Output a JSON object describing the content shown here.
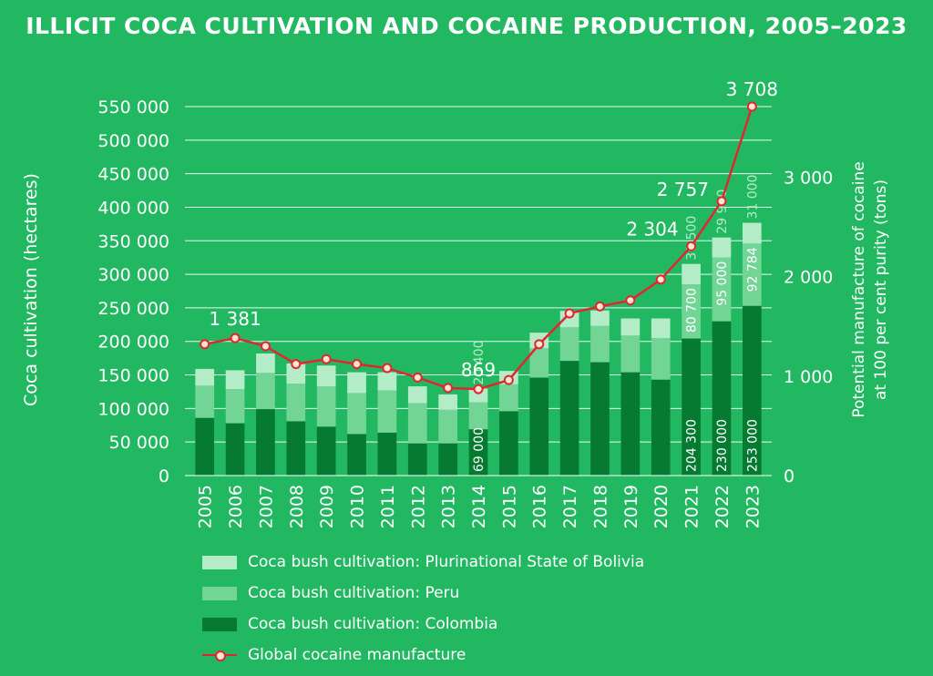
{
  "title": "ILLICIT COCA CULTIVATION AND COCAINE PRODUCTION, 2005–2023",
  "colors": {
    "background": "#22b862",
    "bolivia": "#b3ecc6",
    "peru": "#72d596",
    "colombia": "#077a32",
    "manufacture_line": "#e0262f",
    "manufacture_marker_fill": "#fde6d2"
  },
  "chart_data": {
    "type": "bar",
    "stacked": true,
    "categories": [
      "2005",
      "2006",
      "2007",
      "2008",
      "2009",
      "2010",
      "2011",
      "2012",
      "2013",
      "2014",
      "2015",
      "2016",
      "2017",
      "2018",
      "2019",
      "2020",
      "2021",
      "2022",
      "2023"
    ],
    "series": [
      {
        "name": "Coca bush cultivation: Colombia",
        "axis": "left",
        "values": [
          86000,
          78000,
          99000,
          81000,
          73000,
          62000,
          64000,
          48000,
          48000,
          69000,
          96000,
          146000,
          171000,
          169000,
          154000,
          143000,
          204300,
          230000,
          253000
        ]
      },
      {
        "name": "Coca bush cultivation: Peru",
        "axis": "left",
        "values": [
          48000,
          51000,
          54000,
          56000,
          60000,
          61000,
          63000,
          60000,
          50000,
          40300,
          40000,
          44000,
          50000,
          54000,
          54700,
          61800,
          80700,
          95000,
          92784
        ]
      },
      {
        "name": "Coca bush cultivation: Plurinational State of Bolivia",
        "axis": "left",
        "values": [
          25000,
          28000,
          29000,
          30000,
          31000,
          31000,
          27000,
          25000,
          23000,
          20400,
          20000,
          23000,
          24500,
          23100,
          25500,
          29400,
          30500,
          29900,
          31000
        ]
      },
      {
        "name": "Global cocaine manufacture",
        "axis": "right",
        "type": "line",
        "values": [
          1320,
          1381,
          1300,
          1120,
          1170,
          1120,
          1080,
          985,
          880,
          869,
          960,
          1320,
          1630,
          1700,
          1760,
          1970,
          2304,
          2757,
          3708
        ]
      }
    ],
    "bar_labels": {
      "2014": {
        "Colombia": "69 000",
        "Bolivia": "20 400"
      },
      "2021": {
        "Colombia": "204 300",
        "Peru": "80 700",
        "Bolivia": "30 500"
      },
      "2022": {
        "Colombia": "230 000",
        "Peru": "95 000",
        "Bolivia": "29 900"
      },
      "2023": {
        "Colombia": "253 000",
        "Peru": "92 784",
        "Bolivia": "31 000"
      }
    },
    "line_labels": {
      "2006": "1 381",
      "2014": "869",
      "2021": "2 304",
      "2022": "2 757",
      "2023": "3 708"
    },
    "ylabel": "Coca cultivation (hectares)",
    "ylim": [
      0,
      550000
    ],
    "yticks": [
      0,
      50000,
      100000,
      150000,
      200000,
      250000,
      300000,
      350000,
      400000,
      450000,
      500000,
      550000
    ],
    "ytick_labels": [
      "0",
      "50 000",
      "100 000",
      "150 000",
      "200 000",
      "250 000",
      "300 000",
      "350 000",
      "400 000",
      "450 000",
      "500 000",
      "550 000"
    ],
    "y2label_line1": "Potential manufacture of cocaine",
    "y2label_line2": "at 100 per cent purity (tons)",
    "y2lim": [
      0,
      3708
    ],
    "y2ticks": [
      0,
      1000,
      2000,
      3000
    ],
    "y2tick_labels": [
      "0",
      "1 000",
      "2 000",
      "3 000"
    ],
    "grid": "horizontal",
    "legend_position": "bottom"
  },
  "legend": [
    {
      "label": "Coca bush cultivation: Plurinational State of Bolivia",
      "kind": "bolivia"
    },
    {
      "label": "Coca bush cultivation: Peru",
      "kind": "peru"
    },
    {
      "label": "Coca bush cultivation: Colombia",
      "kind": "colombia"
    },
    {
      "label": "Global cocaine manufacture",
      "kind": "line"
    }
  ]
}
